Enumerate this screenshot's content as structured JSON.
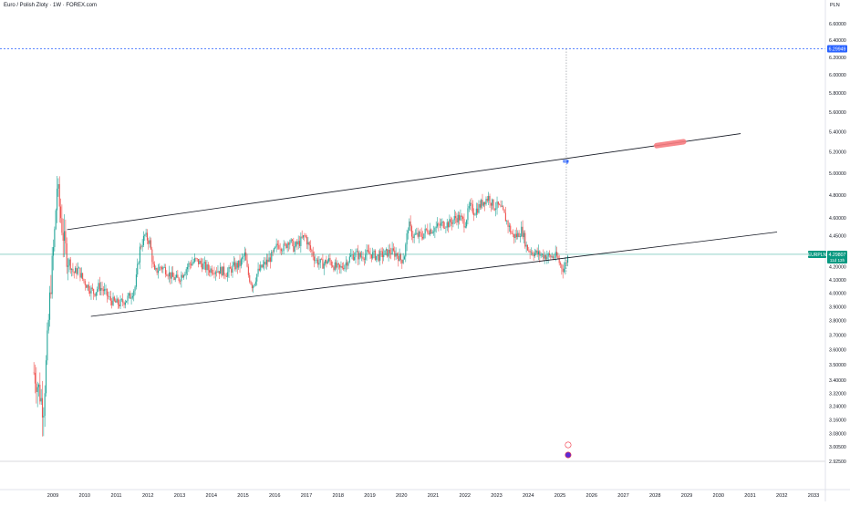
{
  "header": {
    "title": "Euro / Polish Zloty · 1W · FOREX.com"
  },
  "axis": {
    "unit": "PLN"
  },
  "price_labels": {
    "line_price": "6.29949",
    "symbol": "EURPLN",
    "last_price": "4.29807",
    "countdown": "11d 13h"
  },
  "colors": {
    "up": "#26a69a",
    "down": "#ef5350",
    "line_tag": "#2962ff",
    "price_tag": "#089981",
    "channel": "#131722",
    "grid": "#e0e3eb",
    "marker": "#f77c80"
  },
  "chart_data": {
    "type": "candlestick",
    "title": "Euro / Polish Zloty · 1W · FOREX.com",
    "ylabel": "PLN",
    "scale": "log",
    "y_ticks": [
      "6.60000",
      "6.40000",
      "6.20000",
      "6.00000",
      "5.80000",
      "5.60000",
      "5.40000",
      "5.20000",
      "5.00000",
      "4.80000",
      "4.60000",
      "4.45000",
      "4.30000",
      "4.20000",
      "4.10000",
      "4.00000",
      "3.90000",
      "3.80000",
      "3.70000",
      "3.60000",
      "3.50000",
      "3.40000",
      "3.32000",
      "3.24000",
      "3.16000",
      "3.08000",
      "3.00500",
      "2.92500"
    ],
    "x_ticks": [
      "2009",
      "2010",
      "2011",
      "2012",
      "2013",
      "2014",
      "2015",
      "2016",
      "2017",
      "2018",
      "2019",
      "2020",
      "2021",
      "2022",
      "2023",
      "2024",
      "2025",
      "2026",
      "2027",
      "2028",
      "2029",
      "2030",
      "2031",
      "2032",
      "2033"
    ],
    "price_history": [
      [
        2008.4,
        3.45
      ],
      [
        2008.55,
        3.35
      ],
      [
        2008.7,
        3.22
      ],
      [
        2008.8,
        3.55
      ],
      [
        2008.9,
        3.95
      ],
      [
        2009.05,
        4.45
      ],
      [
        2009.13,
        4.88
      ],
      [
        2009.25,
        4.6
      ],
      [
        2009.38,
        4.35
      ],
      [
        2009.5,
        4.25
      ],
      [
        2009.65,
        4.15
      ],
      [
        2009.8,
        4.18
      ],
      [
        2009.95,
        4.1
      ],
      [
        2010.1,
        4.05
      ],
      [
        2010.3,
        4.0
      ],
      [
        2010.45,
        4.05
      ],
      [
        2010.6,
        4.02
      ],
      [
        2010.8,
        3.95
      ],
      [
        2010.95,
        3.93
      ],
      [
        2011.1,
        3.92
      ],
      [
        2011.3,
        3.95
      ],
      [
        2011.45,
        3.98
      ],
      [
        2011.6,
        4.05
      ],
      [
        2011.75,
        4.35
      ],
      [
        2011.9,
        4.45
      ],
      [
        2012.05,
        4.4
      ],
      [
        2012.2,
        4.15
      ],
      [
        2012.4,
        4.2
      ],
      [
        2012.55,
        4.18
      ],
      [
        2012.75,
        4.12
      ],
      [
        2012.95,
        4.1
      ],
      [
        2013.1,
        4.15
      ],
      [
        2013.3,
        4.22
      ],
      [
        2013.5,
        4.25
      ],
      [
        2013.7,
        4.22
      ],
      [
        2013.9,
        4.18
      ],
      [
        2014.1,
        4.18
      ],
      [
        2014.3,
        4.17
      ],
      [
        2014.5,
        4.15
      ],
      [
        2014.7,
        4.2
      ],
      [
        2014.9,
        4.22
      ],
      [
        2015.05,
        4.3
      ],
      [
        2015.15,
        4.15
      ],
      [
        2015.3,
        4.05
      ],
      [
        2015.45,
        4.15
      ],
      [
        2015.6,
        4.2
      ],
      [
        2015.8,
        4.25
      ],
      [
        2015.95,
        4.3
      ],
      [
        2016.1,
        4.38
      ],
      [
        2016.3,
        4.35
      ],
      [
        2016.45,
        4.42
      ],
      [
        2016.6,
        4.35
      ],
      [
        2016.8,
        4.4
      ],
      [
        2016.95,
        4.45
      ],
      [
        2017.1,
        4.35
      ],
      [
        2017.3,
        4.25
      ],
      [
        2017.5,
        4.22
      ],
      [
        2017.7,
        4.25
      ],
      [
        2017.9,
        4.2
      ],
      [
        2018.05,
        4.18
      ],
      [
        2018.2,
        4.22
      ],
      [
        2018.4,
        4.28
      ],
      [
        2018.55,
        4.3
      ],
      [
        2018.7,
        4.28
      ],
      [
        2018.9,
        4.3
      ],
      [
        2019.05,
        4.3
      ],
      [
        2019.25,
        4.28
      ],
      [
        2019.45,
        4.3
      ],
      [
        2019.65,
        4.32
      ],
      [
        2019.85,
        4.3
      ],
      [
        2020.0,
        4.25
      ],
      [
        2020.1,
        4.3
      ],
      [
        2020.22,
        4.55
      ],
      [
        2020.35,
        4.45
      ],
      [
        2020.5,
        4.45
      ],
      [
        2020.65,
        4.45
      ],
      [
        2020.8,
        4.5
      ],
      [
        2020.95,
        4.5
      ],
      [
        2021.1,
        4.52
      ],
      [
        2021.3,
        4.55
      ],
      [
        2021.5,
        4.55
      ],
      [
        2021.7,
        4.6
      ],
      [
        2021.85,
        4.6
      ],
      [
        2022.0,
        4.55
      ],
      [
        2022.15,
        4.7
      ],
      [
        2022.3,
        4.65
      ],
      [
        2022.45,
        4.7
      ],
      [
        2022.6,
        4.75
      ],
      [
        2022.75,
        4.78
      ],
      [
        2022.9,
        4.7
      ],
      [
        2023.05,
        4.7
      ],
      [
        2023.2,
        4.65
      ],
      [
        2023.35,
        4.55
      ],
      [
        2023.5,
        4.45
      ],
      [
        2023.65,
        4.45
      ],
      [
        2023.8,
        4.5
      ],
      [
        2023.95,
        4.35
      ],
      [
        2024.1,
        4.32
      ],
      [
        2024.3,
        4.3
      ],
      [
        2024.5,
        4.29
      ],
      [
        2024.7,
        4.28
      ],
      [
        2024.9,
        4.28
      ],
      [
        2025.0,
        4.22
      ],
      [
        2025.12,
        4.18
      ],
      [
        2025.22,
        4.26
      ],
      [
        2025.28,
        4.29807
      ]
    ],
    "channel": [
      {
        "name": "",
        "x": [
          2009.45,
          2030.7
        ],
        "y": [
          4.5,
          5.38
        ]
      },
      {
        "name": "",
        "x": [
          2010.2,
          2031.85
        ],
        "y": [
          3.83,
          4.48
        ]
      }
    ],
    "horizontal_lines": [
      {
        "y": 6.29949,
        "style": "dashed"
      },
      {
        "y": 4.29807,
        "style": "solid"
      }
    ],
    "vertical_line": {
      "x": 2025.2,
      "style": "dotted"
    },
    "xlim": [
      2008.0,
      2033.6
    ],
    "ylim": [
      2.9,
      6.7
    ],
    "grid": false,
    "legend": "none"
  }
}
